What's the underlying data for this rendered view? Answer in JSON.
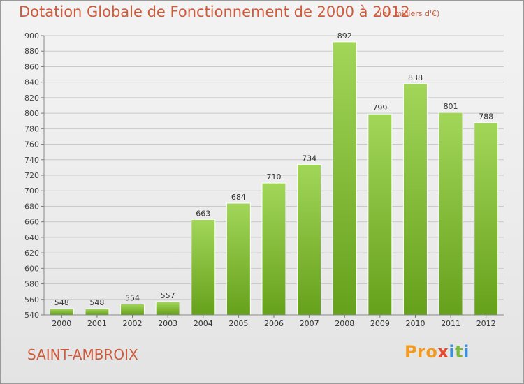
{
  "header": {
    "title": "Dotation Globale de Fonctionnement de 2000 à 2012",
    "unit": "(en milliers d'€)"
  },
  "footer": {
    "commune": "SAINT-AMBROIX",
    "brand": [
      "Pro",
      "x",
      "i",
      "t",
      "i"
    ]
  },
  "colors": {
    "title": "#cf5b3c",
    "bar_top": "#9fd455",
    "bar_bottom": "#6aa51d",
    "grid": "#c8c8c8"
  },
  "chart_data": {
    "type": "bar",
    "categories": [
      "2000",
      "2001",
      "2002",
      "2003",
      "2004",
      "2005",
      "2006",
      "2007",
      "2008",
      "2009",
      "2010",
      "2011",
      "2012"
    ],
    "values": [
      548,
      548,
      554,
      557,
      663,
      684,
      710,
      734,
      892,
      799,
      838,
      801,
      788
    ],
    "title": "Dotation Globale de Fonctionnement de 2000 à 2012",
    "xlabel": "",
    "ylabel": "",
    "ylim": [
      540,
      900
    ],
    "yticks": [
      540,
      560,
      580,
      600,
      620,
      640,
      660,
      680,
      700,
      720,
      740,
      760,
      780,
      800,
      820,
      840,
      860,
      880,
      900
    ],
    "grid": true
  }
}
